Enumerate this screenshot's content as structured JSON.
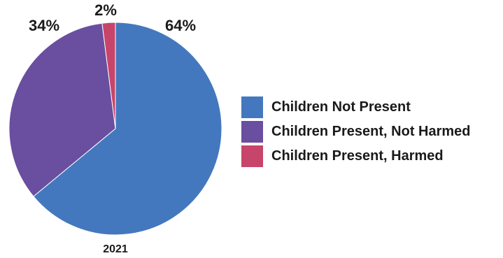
{
  "chart_data": {
    "type": "pie",
    "categories": [
      "Children Not Present",
      "Children Present, Not Harmed",
      "Children Present, Harmed"
    ],
    "values": [
      64,
      34,
      2
    ],
    "value_labels": [
      "64%",
      "34%",
      "2%"
    ],
    "colors": [
      "#4478be",
      "#6a4e9f",
      "#c7456a"
    ],
    "xlabel": "2021",
    "legend_position": "right"
  }
}
